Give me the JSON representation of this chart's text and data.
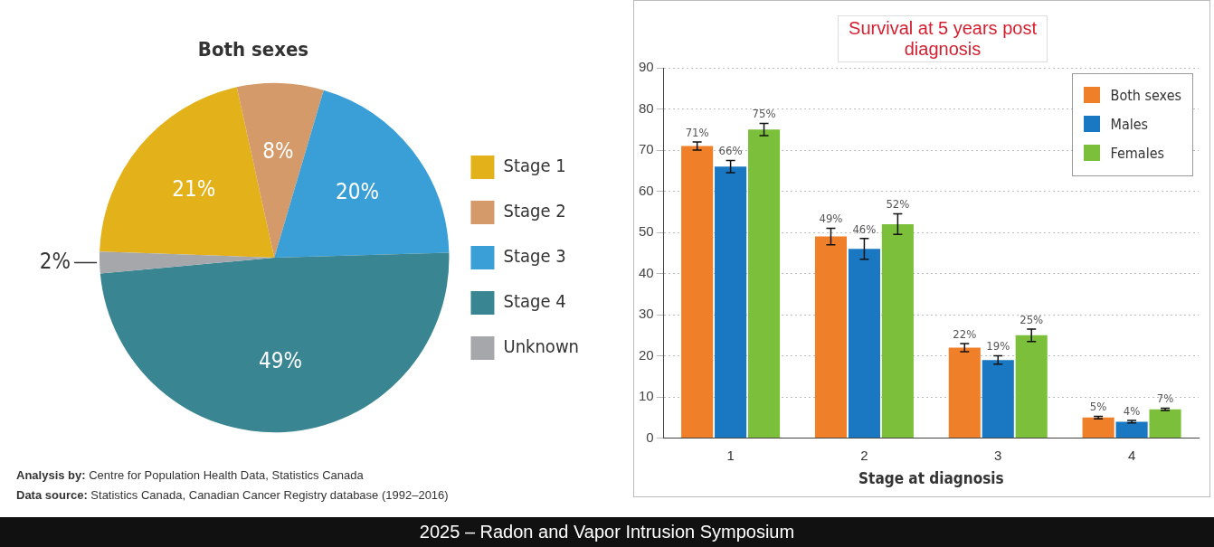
{
  "chart_data": [
    {
      "type": "pie",
      "title": "Both sexes",
      "categories": [
        "Stage 1",
        "Stage 2",
        "Stage 3",
        "Stage 4",
        "Unknown"
      ],
      "values": [
        21,
        8,
        20,
        49,
        2
      ],
      "colors": [
        "#e3b21b",
        "#d49a6a",
        "#3a9fd6",
        "#3a8592",
        "#a5a7aa"
      ],
      "value_labels": [
        "21%",
        "8%",
        "20%",
        "49%",
        "2%"
      ],
      "legend": "right",
      "annotations": [
        "Analysis by: Centre for Population Health Data, Statistics Canada",
        "Data source: Statistics Canada, Canadian Cancer Registry database (1992–2016)",
        "2025 – Radon and Vapor Intrusion Symposium"
      ]
    },
    {
      "type": "bar",
      "title": "Survival at 5 years post diagnosis",
      "xlabel": "Stage at diagnosis",
      "categories": [
        "1",
        "2",
        "3",
        "4"
      ],
      "series": [
        {
          "name": "Both sexes",
          "color": "#f07f2a",
          "values": [
            71,
            49,
            22,
            5
          ],
          "errors": [
            1,
            2,
            1,
            0.3
          ],
          "value_labels": [
            "71%",
            "49%",
            "22%",
            "5%"
          ]
        },
        {
          "name": "Males",
          "color": "#1a78c2",
          "values": [
            66,
            46,
            19,
            4
          ],
          "errors": [
            1.5,
            2.5,
            1,
            0.3
          ],
          "value_labels": [
            "66%",
            "46%",
            "19%",
            "4%"
          ]
        },
        {
          "name": "Females",
          "color": "#7bbf3a",
          "values": [
            75,
            52,
            25,
            7
          ],
          "errors": [
            1.5,
            2.5,
            1.5,
            0.3
          ],
          "value_labels": [
            "75%",
            "52%",
            "25%",
            "7%"
          ]
        }
      ],
      "ylim": [
        0,
        90
      ],
      "yticks": [
        0,
        10,
        20,
        30,
        40,
        50,
        60,
        70,
        80,
        90
      ],
      "grid": "y",
      "legend": "top right"
    }
  ]
}
